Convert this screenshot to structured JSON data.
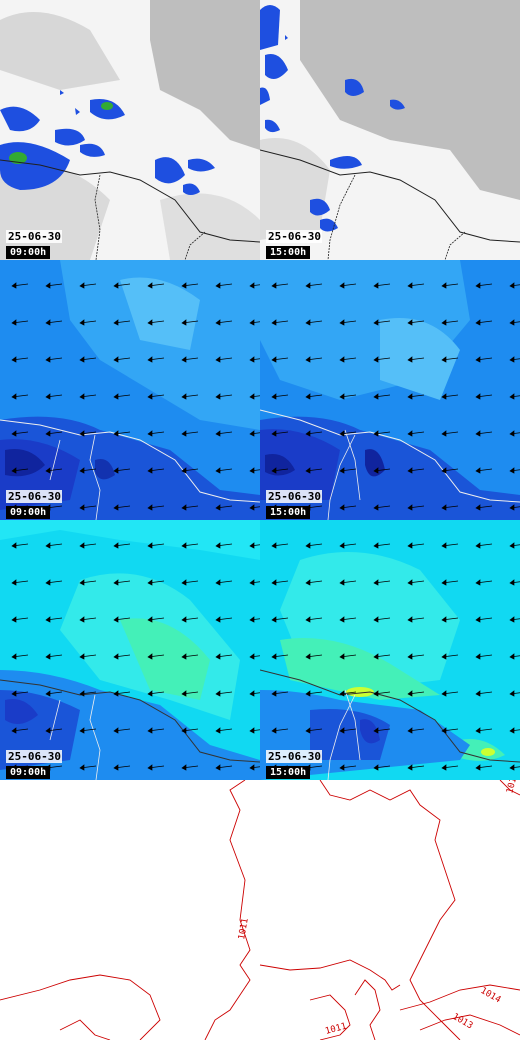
{
  "panels": [
    {
      "row": "precipitation",
      "date": "25-06-30",
      "time": "09:00h"
    },
    {
      "row": "precipitation",
      "date": "25-06-30",
      "time": "15:00h"
    },
    {
      "row": "wind-low",
      "date": "25-06-30",
      "time": "09:00h"
    },
    {
      "row": "wind-low",
      "date": "25-06-30",
      "time": "15:00h"
    },
    {
      "row": "wind-high",
      "date": "25-06-30",
      "time": "09:00h"
    },
    {
      "row": "wind-high",
      "date": "25-06-30",
      "time": "15:00h"
    }
  ],
  "pressure": {
    "isobars": [
      "1014",
      "1013",
      "1011",
      "1011",
      "101"
    ]
  },
  "colors": {
    "cloud_grey": "#b8b8b8",
    "precip_blue": "#1e4fe0",
    "precip_green": "#33aa33",
    "wind_low_base": "#1e8cf0",
    "wind_dark": "#1a3cc8",
    "wind_high_base": "#11d9f2",
    "wind_green": "#44f0b8",
    "coast": "#202020",
    "isobar": "#cc0000"
  }
}
